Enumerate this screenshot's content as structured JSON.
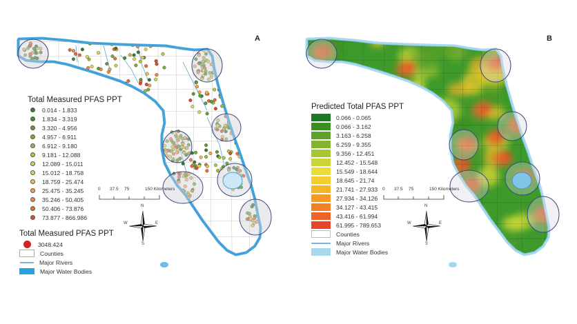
{
  "panel_a": {
    "label": "A",
    "legend_title": "Total Measured PFAS PPT",
    "classes": [
      {
        "label": "0.014 - 1.833",
        "color": "#2e7d32"
      },
      {
        "label": "1.834 - 3.319",
        "color": "#3f8f2f"
      },
      {
        "label": "3.320 - 4.956",
        "color": "#58a030"
      },
      {
        "label": "4.957 - 6.911",
        "color": "#75b032"
      },
      {
        "label": "6.912 - 9.180",
        "color": "#93bf36"
      },
      {
        "label": "9.181 - 12.088",
        "color": "#b1cc3c"
      },
      {
        "label": "12.089 - 15.011",
        "color": "#cfd646"
      },
      {
        "label": "15.012 - 18.758",
        "color": "#e6d44a"
      },
      {
        "label": "18.759 - 25.474",
        "color": "#f0c04a"
      },
      {
        "label": "25.475 - 35.245",
        "color": "#f2a446"
      },
      {
        "label": "35.246 - 50.405",
        "color": "#f08a40"
      },
      {
        "label": "50.406 - 73.876",
        "color": "#ea6a38"
      },
      {
        "label": "73.877 - 866.986",
        "color": "#e04a30"
      }
    ],
    "legend2_title": "Total Measured PFAS PPT",
    "max_label": "3048.424",
    "max_color": "#d42020",
    "counties_label": "Counties",
    "rivers_label": "Major Rivers",
    "water_label": "Major Water Bodies",
    "scale": {
      "ticks": [
        "0",
        "37.5",
        "75",
        "150 Kilometers"
      ]
    },
    "north": {
      "n": "N",
      "s": "S",
      "e": "E",
      "w": "W"
    }
  },
  "panel_b": {
    "label": "B",
    "legend_title": "Predicted Total PFAS PPT",
    "classes": [
      {
        "label": "0.066 - 0.065",
        "color": "#1e7a22"
      },
      {
        "label": "0.066 - 3.162",
        "color": "#3a8e24"
      },
      {
        "label": "3.163 - 6.258",
        "color": "#5ea22a"
      },
      {
        "label": "6.259 - 9.355",
        "color": "#82b42e"
      },
      {
        "label": "9.356 - 12.451",
        "color": "#a6c632"
      },
      {
        "label": "12.452 - 15.548",
        "color": "#cbd636"
      },
      {
        "label": "15.549 - 18.644",
        "color": "#ecdc38"
      },
      {
        "label": "18.645 - 21.74",
        "color": "#f6cc2c"
      },
      {
        "label": "21.741 - 27.933",
        "color": "#f7b426"
      },
      {
        "label": "27.934 - 34.126",
        "color": "#f59a26"
      },
      {
        "label": "34.127 - 43.415",
        "color": "#f28026"
      },
      {
        "label": "43.416 - 61.994",
        "color": "#ee6428"
      },
      {
        "label": "61.995 - 789.653",
        "color": "#e6452a"
      }
    ],
    "counties_label": "Counties",
    "rivers_label": "Major Rivers",
    "water_label": "Major Water Bodies",
    "scale": {
      "ticks": [
        "0",
        "37.5",
        "75",
        "150 Kilometers"
      ]
    },
    "north": {
      "n": "N",
      "s": "S",
      "e": "E",
      "w": "W"
    }
  },
  "colors": {
    "water": "#3fa2dc",
    "water_light": "#a8d8ee",
    "land": "#ffffff",
    "county": "#bbbbbb",
    "highlight": "#3a4a7a",
    "river": "#7ab4d6"
  }
}
